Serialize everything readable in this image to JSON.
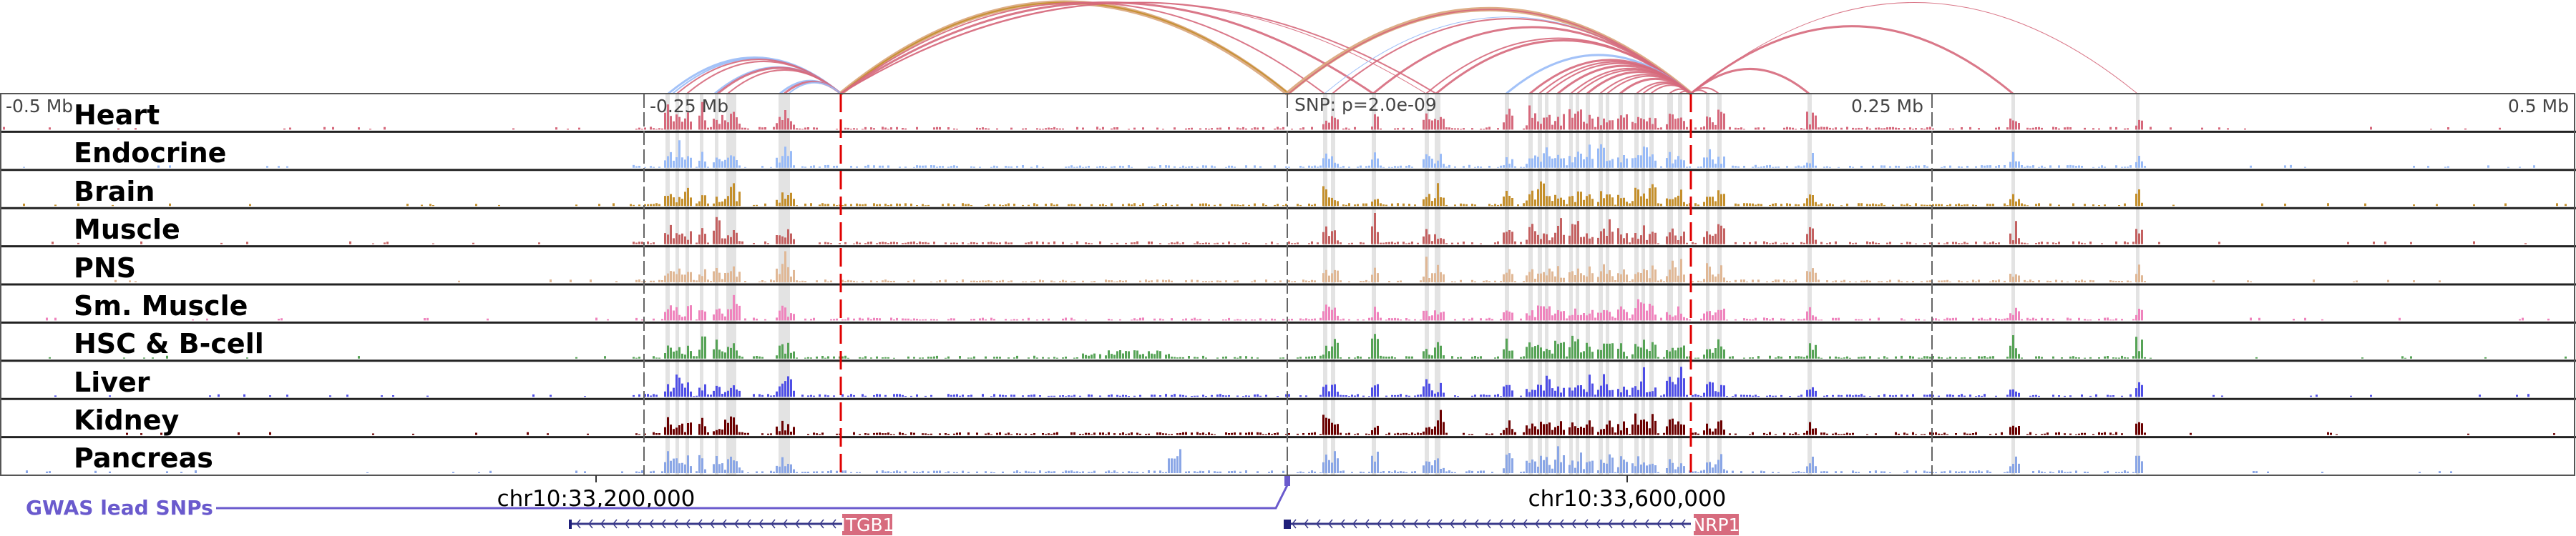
{
  "axis": {
    "left_label": "-0.5 Mb",
    "left_mid_label": "-0.25 Mb",
    "snp_label": "SNP: p=2.0e-09",
    "right_mid_label": "0.25 Mb",
    "right_label": "0.5 Mb"
  },
  "tracks": [
    {
      "label": "Heart",
      "color": "#d6697c"
    },
    {
      "label": "Endocrine",
      "color": "#99bbf7"
    },
    {
      "label": "Brain",
      "color": "#c48f2c"
    },
    {
      "label": "Muscle",
      "color": "#c46161"
    },
    {
      "label": "PNS",
      "color": "#e0b896"
    },
    {
      "label": "Sm. Muscle",
      "color": "#ef84bd"
    },
    {
      "label": "HSC & B-cell",
      "color": "#56a356"
    },
    {
      "label": "Liver",
      "color": "#4f4fe6"
    },
    {
      "label": "Kidney",
      "color": "#6b0000"
    },
    {
      "label": "Pancreas",
      "color": "#8aa6e6"
    }
  ],
  "coordinates": [
    "chr10:33,200,000",
    "chr10:33,600,000"
  ],
  "gwas": {
    "label": "GWAS lead SNPs",
    "color": "#6a5acd"
  },
  "genes": [
    {
      "name": "ITGB1",
      "strand": "-"
    },
    {
      "name": "NRP1",
      "strand": "-"
    }
  ],
  "colors": {
    "tss_marker": "#e00000",
    "gene_label_bg": "#d76b7e",
    "gene_body": "#1f1f7a",
    "highlight": "#e3e3e3"
  }
}
